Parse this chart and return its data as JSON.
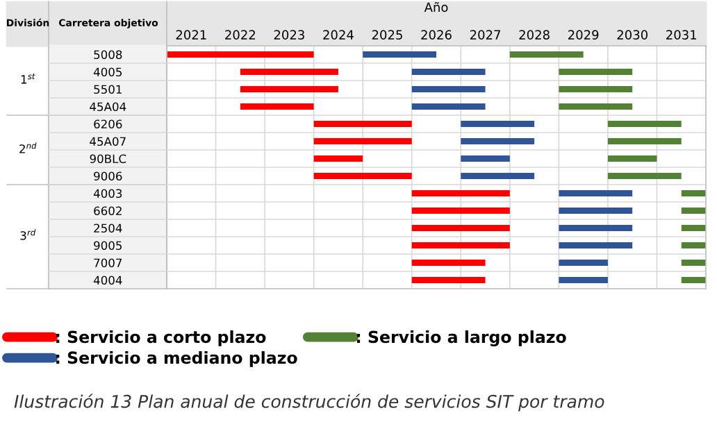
{
  "chart_data": {
    "type": "bar",
    "orientation": "horizontal",
    "xlabel": "Año",
    "ylabel": "Carretera objetivo",
    "categories": [
      "5008",
      "4005",
      "5501",
      "45A04",
      "6206",
      "45A07",
      "90BLC",
      "9006",
      "4003",
      "6602",
      "2504",
      "9005",
      "7007",
      "4004"
    ],
    "series": [
      {
        "name": ": Servicio a corto plazo",
        "color": "#ff0000",
        "base": [
          2021,
          2022.5,
          2022.5,
          2022.5,
          2024,
          2024,
          2024,
          2024,
          2026,
          2026,
          2026,
          2026,
          2026,
          2026
        ],
        "values": [
          3,
          2,
          2,
          1.5,
          2,
          2,
          1,
          2,
          2,
          2,
          2,
          2,
          1.5,
          1.5
        ]
      },
      {
        "name": ": Servicio a mediano plazo",
        "color": "#2f5597",
        "base": [
          2025,
          2026,
          2026,
          2026,
          2027,
          2027,
          2027,
          2027,
          2029,
          2029,
          2029,
          2029,
          2029,
          2029
        ],
        "values": [
          1.5,
          1.5,
          1.5,
          1.5,
          1.5,
          1.5,
          1,
          1.5,
          1.5,
          1.5,
          1.5,
          1.5,
          1,
          1
        ]
      },
      {
        "name": ": Servicio a largo plazo",
        "color": "#548235",
        "base": [
          2028,
          2029,
          2029,
          2029,
          2030,
          2030,
          2030,
          2030,
          2031.5,
          2031.5,
          2031.5,
          2031.5,
          2031.5,
          2031.5
        ],
        "values": [
          1.5,
          1.5,
          1.5,
          1.5,
          1.5,
          1.5,
          1,
          1.5,
          0.5,
          0.5,
          0.5,
          0.5,
          0.5,
          0.5
        ]
      }
    ],
    "xlim": [
      2021,
      2032
    ],
    "xticks": [
      {
        "value": 2021.5,
        "label": "2021"
      },
      {
        "value": 2022.5,
        "label": "2022"
      },
      {
        "value": 2023.5,
        "label": "2023"
      },
      {
        "value": 2024.5,
        "label": "2024"
      },
      {
        "value": 2025.5,
        "label": "2025"
      },
      {
        "value": 2026.5,
        "label": "2026"
      },
      {
        "value": 2027.5,
        "label": "2027"
      },
      {
        "value": 2028.5,
        "label": "2028"
      },
      {
        "value": 2029.5,
        "label": "2029"
      },
      {
        "value": 2030.5,
        "label": "2030"
      },
      {
        "value": 2031.5,
        "label": "2031"
      }
    ],
    "grid": true,
    "legend": "bottom",
    "annotations": [
      "División",
      "1$^{st}$",
      "2$^{nd}$",
      "3$^{rd}$",
      "Ilustración 13 Plan anual de construcción de servicios SIT por tramo"
    ]
  }
}
